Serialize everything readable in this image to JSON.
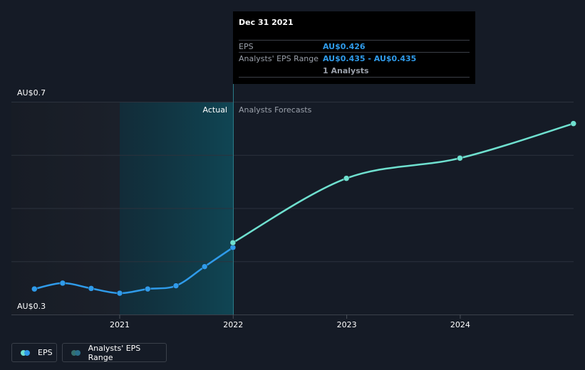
{
  "chart_data": {
    "type": "line",
    "y_axis": {
      "top_label": "AU$0.7",
      "bottom_label": "AU$0.3",
      "ylim": [
        0.3,
        0.7
      ]
    },
    "x_ticks": [
      "2021",
      "2022",
      "2023",
      "2024"
    ],
    "section_labels": {
      "actual": "Actual",
      "forecast": "Analysts Forecasts"
    },
    "series": [
      {
        "name": "EPS",
        "color": "#2f9bea",
        "points": [
          {
            "x": "2020-04-01",
            "y": 0.348
          },
          {
            "x": "2020-07-01",
            "y": 0.359
          },
          {
            "x": "2020-10-01",
            "y": 0.349
          },
          {
            "x": "2021-01-01",
            "y": 0.34
          },
          {
            "x": "2021-04-01",
            "y": 0.348
          },
          {
            "x": "2021-07-01",
            "y": 0.354
          },
          {
            "x": "2021-10-01",
            "y": 0.39
          },
          {
            "x": "2021-12-31",
            "y": 0.426
          }
        ]
      },
      {
        "name": "Analysts' EPS Range",
        "color": "#6fe0cf",
        "points": [
          {
            "x": "2021-12-31",
            "y": 0.435
          },
          {
            "x": "2022-12-31",
            "y": 0.556
          },
          {
            "x": "2023-12-31",
            "y": 0.594
          },
          {
            "x": "2024-12-31",
            "y": 0.659
          }
        ]
      }
    ]
  },
  "tooltip": {
    "date": "Dec 31 2021",
    "rows": [
      {
        "label": "EPS",
        "value": "AU$0.426"
      },
      {
        "label": "Analysts' EPS Range",
        "value": "AU$0.435 - AU$0.435"
      },
      {
        "label": "",
        "value": "1 Analysts"
      }
    ]
  },
  "legend": [
    {
      "label": "EPS",
      "colors": [
        "#2f9bea",
        "#6fe0cf"
      ]
    },
    {
      "label": "Analysts' EPS Range",
      "colors": [
        "#2a6f8a",
        "#35706e"
      ]
    }
  ]
}
